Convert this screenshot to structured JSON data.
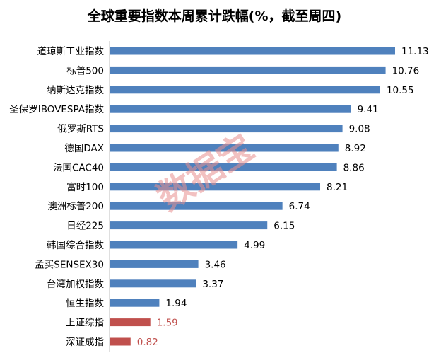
{
  "chart_data": {
    "type": "bar",
    "orientation": "horizontal",
    "title": "全球重要指数本周累计跌幅(%，截至周四)",
    "categories": [
      "道琼斯工业指数",
      "标普500",
      "纳斯达克指数",
      "圣保罗IBOVESPA指数",
      "俄罗斯RTS",
      "德国DAX",
      "法国CAC40",
      "富时100",
      "澳洲标普200",
      "日经225",
      "韩国综合指数",
      "孟买SENSEX30",
      "台湾加权指数",
      "恒生指数",
      "上证综指",
      "深证成指"
    ],
    "values": [
      11.13,
      10.76,
      10.55,
      9.41,
      9.08,
      8.92,
      8.86,
      8.21,
      6.74,
      6.15,
      4.99,
      3.46,
      3.37,
      1.94,
      1.59,
      0.82
    ],
    "value_labels": [
      "11.13",
      "10.76",
      "10.55",
      "9.41",
      "9.08",
      "8.92",
      "8.86",
      "8.21",
      "6.74",
      "6.15",
      "4.99",
      "3.46",
      "3.37",
      "1.94",
      "1.59",
      "0.82"
    ],
    "highlight_categories": [
      "上证综指",
      "深证成指"
    ],
    "xlim": [
      0,
      11.13
    ],
    "grid": false,
    "colors": {
      "bar": "#4f81bd",
      "highlight": "#c0504d",
      "label": "#000000",
      "highlight_label": "#c0504d"
    }
  },
  "watermark": "数据宝"
}
